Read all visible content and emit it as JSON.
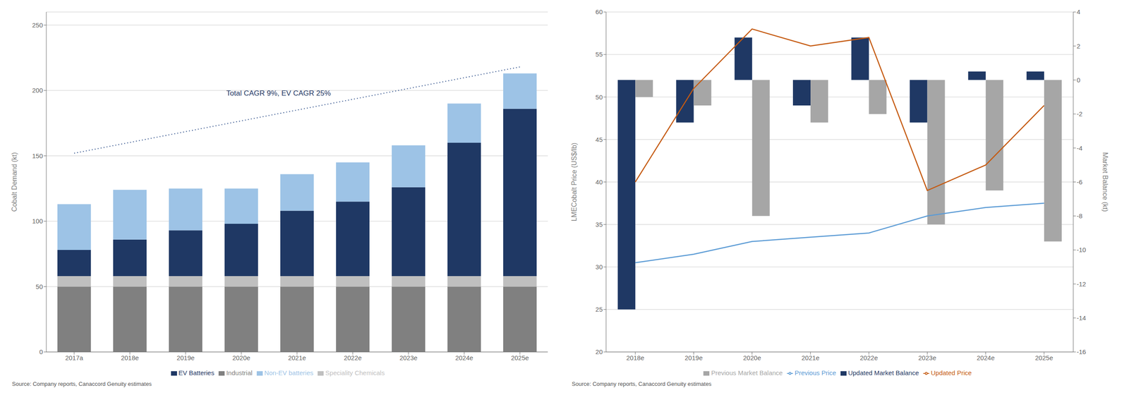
{
  "chart_data": [
    {
      "type": "bar",
      "stacked": true,
      "categories": [
        "2017a",
        "2018e",
        "2019e",
        "2020e",
        "2021e",
        "2022e",
        "2023e",
        "2024e",
        "2025e"
      ],
      "series": [
        {
          "name": "Industrial",
          "color": "#808080",
          "values": [
            50,
            50,
            50,
            50,
            50,
            50,
            50,
            50,
            50
          ]
        },
        {
          "name": "Speciality Chemicals",
          "color": "#bfbfbf",
          "values": [
            8,
            8,
            8,
            8,
            8,
            8,
            8,
            8,
            8
          ]
        },
        {
          "name": "EV Batteries",
          "color": "#1f3864",
          "values": [
            20,
            28,
            35,
            40,
            50,
            57,
            68,
            102,
            128
          ]
        },
        {
          "name": "Non-EV batteries",
          "color": "#9dc3e6",
          "values": [
            35,
            38,
            32,
            27,
            28,
            30,
            32,
            30,
            27
          ]
        }
      ],
      "trend_line": {
        "x": [
          "2017a",
          "2025e"
        ],
        "values": [
          152,
          218
        ],
        "color": "#2e4f8a",
        "line_style": "dotted"
      },
      "annotation": "Total CAGR 9%, EV CAGR 25%",
      "ylabel": "Cobalt Demand (kt)",
      "ylim": [
        0,
        260
      ],
      "yticks": [
        0,
        50,
        100,
        150,
        200,
        250
      ],
      "grid": true,
      "legend": "bottom",
      "source": "Source: Company reports, Canaccord Genuity estimates"
    },
    {
      "type": "bar",
      "categories": [
        "2018e",
        "2019e",
        "2020e",
        "2021e",
        "2022e",
        "2023e",
        "2024e",
        "2025e"
      ],
      "series": [
        {
          "name": "Updated Market Balance",
          "type": "bar",
          "axis": "y2",
          "color": "#1f3864",
          "values": [
            -13.5,
            -2.5,
            2.5,
            -1.5,
            2.5,
            -2.5,
            0.5,
            0.5
          ]
        },
        {
          "name": "Previous Market Balance",
          "type": "bar",
          "axis": "y2",
          "color": "#a6a6a6",
          "values": [
            -1.0,
            -1.5,
            -8.0,
            -2.5,
            -2.0,
            -8.5,
            -6.5,
            -9.5
          ]
        },
        {
          "name": "Updated Price",
          "type": "line",
          "color": "#c55a11",
          "values": [
            40,
            51,
            58,
            56,
            57,
            39,
            42,
            49
          ]
        },
        {
          "name": "Previous Price",
          "type": "line",
          "color": "#5b9bd5",
          "values": [
            30.5,
            31.5,
            33,
            33.5,
            34,
            36,
            37,
            37.5
          ]
        }
      ],
      "ylabel": "LMECobalt Price (US$/lb)",
      "y2label": "Market Balance (kt)",
      "ylim": [
        20,
        60
      ],
      "yticks": [
        20,
        25,
        30,
        35,
        40,
        45,
        50,
        55,
        60
      ],
      "y2lim": [
        -16,
        4
      ],
      "y2ticks": [
        -16,
        -14,
        -12,
        -10,
        -8,
        -6,
        -4,
        -2,
        0,
        2,
        4
      ],
      "grid": true,
      "legend": "bottom",
      "source": "Source: Company reports, Canaccord Genuity estimates"
    }
  ]
}
